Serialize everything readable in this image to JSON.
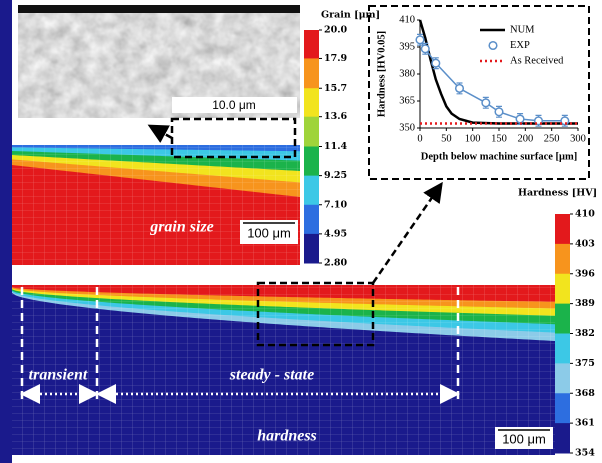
{
  "sem": {
    "scale_bar": "10.0 μm"
  },
  "grain_map": {
    "label": "grain size",
    "scale_bar": "100 μm",
    "colorbar": {
      "title": "Grain [μm]",
      "lim": [
        2.8,
        20.0
      ],
      "ticks": [
        {
          "value": 20.0,
          "label": "20.0"
        },
        17.9,
        15.7,
        13.6,
        11.4,
        9.25,
        {
          "value": 7.1,
          "label": "7.10"
        },
        4.95,
        {
          "value": 2.8,
          "label": "2.80"
        }
      ],
      "colors": [
        "#e3191c",
        "#f7941d",
        "#f2e41e",
        "#9fd43a",
        "#1bb34b",
        "#3cc8e6",
        "#2d6ee0",
        "#1a1a8c"
      ]
    }
  },
  "hardness_map": {
    "label": "hardness",
    "scale_bar": "100 μm",
    "regions": [
      "transient",
      "steady - state"
    ],
    "colorbar": {
      "title": "Hardness [HV]",
      "lim": [
        354,
        410
      ],
      "ticks": [
        410,
        403,
        396,
        389,
        382,
        375,
        368,
        361,
        354
      ],
      "colors": [
        "#e3191c",
        "#f7941d",
        "#f2e41e",
        "#1bb34b",
        "#3cc8e6",
        "#8ccbe8",
        "#2d6ee0",
        "#1a1a8c"
      ]
    }
  },
  "chart_data": {
    "type": "line",
    "xlabel": "Depth below machine surface [μm]",
    "ylabel": "Hardness [HV0.05]",
    "xlim": [
      0,
      300
    ],
    "ylim": [
      350,
      410
    ],
    "xticks": [
      0,
      50,
      100,
      150,
      200,
      250,
      300
    ],
    "yticks": [
      350,
      365,
      380,
      395,
      410
    ],
    "series": [
      {
        "name": "NUM",
        "color": "#000000",
        "style": "solid",
        "x": [
          0,
          10,
          20,
          30,
          40,
          50,
          60,
          75,
          100,
          150,
          200,
          250,
          300
        ],
        "values": [
          410,
          400,
          388,
          377,
          369,
          362,
          358,
          355,
          353,
          352.5,
          352.5,
          352.5,
          352.5
        ]
      },
      {
        "name": "EXP",
        "color": "#5b8fc9",
        "style": "marker",
        "x": [
          0,
          10,
          30,
          75,
          125,
          150,
          190,
          225,
          275
        ],
        "values": [
          399,
          394,
          386,
          372,
          364,
          359,
          355,
          354,
          354
        ],
        "errors": [
          3,
          3,
          3,
          3,
          3,
          3,
          3,
          3,
          3
        ]
      },
      {
        "name": "As Received",
        "color": "#e3191c",
        "style": "dotted",
        "x": [
          0,
          300
        ],
        "values": [
          352.5,
          352.5
        ]
      }
    ]
  }
}
